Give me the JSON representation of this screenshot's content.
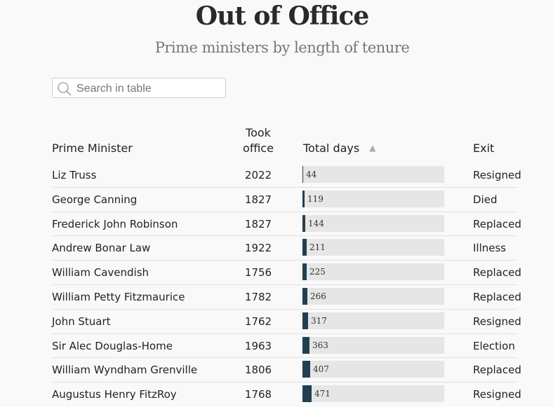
{
  "header": {
    "title": "Out of Office",
    "subtitle": "Prime ministers by length of tenure"
  },
  "search": {
    "placeholder": "Search in table",
    "value": ""
  },
  "table": {
    "columns": {
      "name": "Prime Minister",
      "took_line1": "Took",
      "took_line2": "office",
      "days": "Total days",
      "exit": "Exit"
    },
    "sort": {
      "column": "Total days",
      "direction": "ascending",
      "icon": "triangle-up-icon"
    },
    "bar_color": "#213f50",
    "bar_scale_max_days": 7600,
    "rows": [
      {
        "name": "Liz Truss",
        "took": "2022",
        "days": 44,
        "exit": "Resigned"
      },
      {
        "name": "George Canning",
        "took": "1827",
        "days": 119,
        "exit": "Died"
      },
      {
        "name": "Frederick John Robinson",
        "took": "1827",
        "days": 144,
        "exit": "Replaced"
      },
      {
        "name": "Andrew Bonar Law",
        "took": "1922",
        "days": 211,
        "exit": "Illness"
      },
      {
        "name": "William Cavendish",
        "took": "1756",
        "days": 225,
        "exit": "Replaced"
      },
      {
        "name": "William Petty Fitzmaurice",
        "took": "1782",
        "days": 266,
        "exit": "Replaced"
      },
      {
        "name": "John Stuart",
        "took": "1762",
        "days": 317,
        "exit": "Resigned"
      },
      {
        "name": "Sir Alec Douglas-Home",
        "took": "1963",
        "days": 363,
        "exit": "Election"
      },
      {
        "name": "William Wyndham Grenville",
        "took": "1806",
        "days": 407,
        "exit": "Replaced"
      },
      {
        "name": "Augustus Henry FitzRoy",
        "took": "1768",
        "days": 471,
        "exit": "Resigned"
      }
    ]
  }
}
